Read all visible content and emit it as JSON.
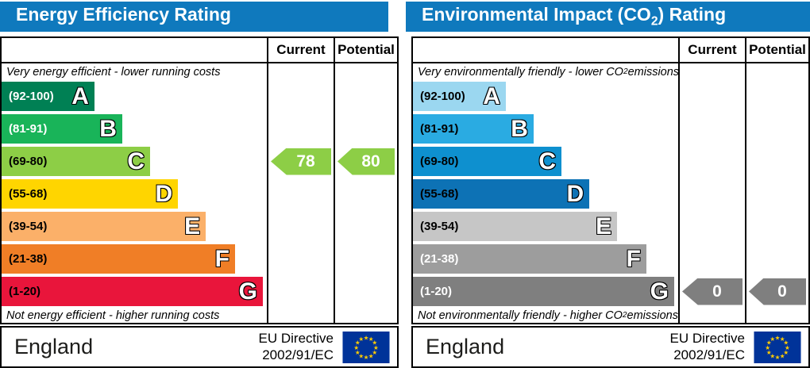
{
  "panels": [
    {
      "title_parts": {
        "pre": "Energy Efficiency Rating",
        "sub": "",
        "post": ""
      },
      "columns": {
        "current": "Current",
        "potential": "Potential"
      },
      "top_label_parts": {
        "pre": "Very energy efficient - lower running costs",
        "sub": "",
        "post": ""
      },
      "bottom_label_parts": {
        "pre": "Not energy efficient - higher running costs",
        "sub": "",
        "post": ""
      },
      "bands": [
        {
          "letter": "A",
          "range": "(92-100)",
          "color": "#008054",
          "text_color": "#ffffff",
          "width_pct": 35
        },
        {
          "letter": "B",
          "range": "(81-91)",
          "color": "#19b459",
          "text_color": "#ffffff",
          "width_pct": 45.5
        },
        {
          "letter": "C",
          "range": "(69-80)",
          "color": "#8dce46",
          "text_color": "#000000",
          "width_pct": 56
        },
        {
          "letter": "D",
          "range": "(55-68)",
          "color": "#ffd500",
          "text_color": "#000000",
          "width_pct": 66.5
        },
        {
          "letter": "E",
          "range": "(39-54)",
          "color": "#fbb069",
          "text_color": "#000000",
          "width_pct": 77
        },
        {
          "letter": "F",
          "range": "(21-38)",
          "color": "#f07e26",
          "text_color": "#000000",
          "width_pct": 88
        },
        {
          "letter": "G",
          "range": "(1-20)",
          "color": "#e9153b",
          "text_color": "#000000",
          "width_pct": 98.5
        }
      ],
      "current": {
        "value": "78",
        "band": "C",
        "color": "#8dce46"
      },
      "potential": {
        "value": "80",
        "band": "C",
        "color": "#8dce46"
      },
      "footer": {
        "region": "England",
        "directive_line1": "EU Directive",
        "directive_line2": "2002/91/EC"
      }
    },
    {
      "title_parts": {
        "pre": "Environmental Impact (CO",
        "sub": "2",
        "post": ") Rating"
      },
      "columns": {
        "current": "Current",
        "potential": "Potential"
      },
      "top_label_parts": {
        "pre": "Very environmentally friendly - lower CO",
        "sub": "2",
        "post": " emissions"
      },
      "bottom_label_parts": {
        "pre": "Not environmentally friendly - higher CO",
        "sub": "2",
        "post": " emissions"
      },
      "bands": [
        {
          "letter": "A",
          "range": "(92-100)",
          "color": "#9bd7f0",
          "text_color": "#000000",
          "width_pct": 35
        },
        {
          "letter": "B",
          "range": "(81-91)",
          "color": "#2aabe2",
          "text_color": "#000000",
          "width_pct": 45.5
        },
        {
          "letter": "C",
          "range": "(69-80)",
          "color": "#0e90cf",
          "text_color": "#000000",
          "width_pct": 56
        },
        {
          "letter": "D",
          "range": "(55-68)",
          "color": "#0d72b5",
          "text_color": "#000000",
          "width_pct": 66.5
        },
        {
          "letter": "E",
          "range": "(39-54)",
          "color": "#c6c6c6",
          "text_color": "#000000",
          "width_pct": 77
        },
        {
          "letter": "F",
          "range": "(21-38)",
          "color": "#9d9d9d",
          "text_color": "#ffffff",
          "width_pct": 88
        },
        {
          "letter": "G",
          "range": "(1-20)",
          "color": "#7f7f7f",
          "text_color": "#ffffff",
          "width_pct": 98.5
        }
      ],
      "current": {
        "value": "0",
        "band": "G",
        "color": "#7f7f7f"
      },
      "potential": {
        "value": "0",
        "band": "G",
        "color": "#7f7f7f"
      },
      "footer": {
        "region": "England",
        "directive_line1": "EU Directive",
        "directive_line2": "2002/91/EC"
      }
    }
  ],
  "colors": {
    "header_bar": "#0f79bd",
    "eu_flag_blue": "#003399",
    "eu_flag_stars": "#ffcc00",
    "border": "#000000"
  },
  "chart_data": [
    {
      "type": "bar",
      "title": "Energy Efficiency Rating",
      "categories": [
        "A (92-100)",
        "B (81-91)",
        "C (69-80)",
        "D (55-68)",
        "E (39-54)",
        "F (21-38)",
        "G (1-20)"
      ],
      "scale_range": [
        1,
        100
      ],
      "series": [
        {
          "name": "Current",
          "value": 78,
          "band": "C"
        },
        {
          "name": "Potential",
          "value": 80,
          "band": "C"
        }
      ],
      "top_annotation": "Very energy efficient - lower running costs",
      "bottom_annotation": "Not energy efficient - higher running costs",
      "footer_region": "England",
      "footer_directive": "EU Directive 2002/91/EC"
    },
    {
      "type": "bar",
      "title": "Environmental Impact (CO2) Rating",
      "categories": [
        "A (92-100)",
        "B (81-91)",
        "C (69-80)",
        "D (55-68)",
        "E (39-54)",
        "F (21-38)",
        "G (1-20)"
      ],
      "scale_range": [
        1,
        100
      ],
      "series": [
        {
          "name": "Current",
          "value": 0,
          "band": "G"
        },
        {
          "name": "Potential",
          "value": 0,
          "band": "G"
        }
      ],
      "top_annotation": "Very environmentally friendly - lower CO2 emissions",
      "bottom_annotation": "Not environmentally friendly - higher CO2 emissions",
      "footer_region": "England",
      "footer_directive": "EU Directive 2002/91/EC"
    }
  ]
}
